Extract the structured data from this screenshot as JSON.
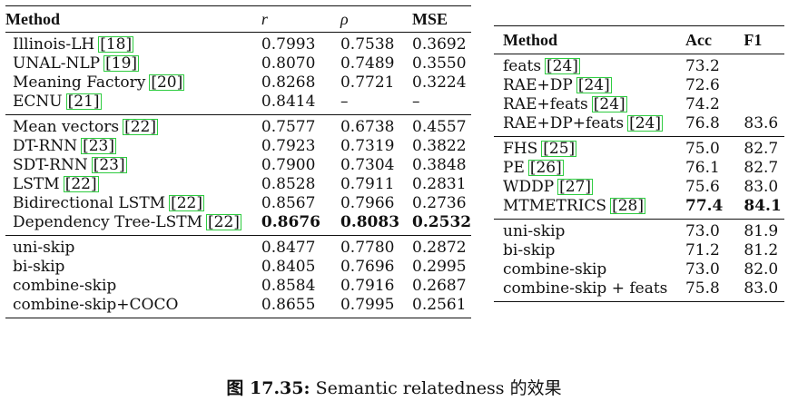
{
  "left_table": {
    "headers": [
      "Method",
      "r",
      "ρ",
      "MSE"
    ],
    "groups": [
      [
        {
          "method": "Illinois-LH",
          "cite": "[18]",
          "r": "0.7993",
          "rho": "0.7538",
          "mse": "0.3692"
        },
        {
          "method": "UNAL-NLP",
          "cite": "[19]",
          "r": "0.8070",
          "rho": "0.7489",
          "mse": "0.3550"
        },
        {
          "method": "Meaning Factory",
          "cite": "[20]",
          "r": "0.8268",
          "rho": "0.7721",
          "mse": "0.3224"
        },
        {
          "method": "ECNU",
          "cite": "[21]",
          "r": "0.8414",
          "rho": "–",
          "mse": "–"
        }
      ],
      [
        {
          "method": "Mean vectors",
          "cite": "[22]",
          "r": "0.7577",
          "rho": "0.6738",
          "mse": "0.4557"
        },
        {
          "method": "DT-RNN",
          "cite": "[23]",
          "r": "0.7923",
          "rho": "0.7319",
          "mse": "0.3822"
        },
        {
          "method": "SDT-RNN",
          "cite": "[23]",
          "r": "0.7900",
          "rho": "0.7304",
          "mse": "0.3848"
        },
        {
          "method": "LSTM",
          "cite": "[22]",
          "r": "0.8528",
          "rho": "0.7911",
          "mse": "0.2831"
        },
        {
          "method": "Bidirectional LSTM",
          "cite": "[22]",
          "r": "0.8567",
          "rho": "0.7966",
          "mse": "0.2736"
        },
        {
          "method": "Dependency Tree-LSTM",
          "cite": "[22]",
          "r": "0.8676",
          "rho": "0.8083",
          "mse": "0.2532",
          "bold": true
        }
      ],
      [
        {
          "method": "uni-skip",
          "cite": "",
          "r": "0.8477",
          "rho": "0.7780",
          "mse": "0.2872"
        },
        {
          "method": "bi-skip",
          "cite": "",
          "r": "0.8405",
          "rho": "0.7696",
          "mse": "0.2995"
        },
        {
          "method": "combine-skip",
          "cite": "",
          "r": "0.8584",
          "rho": "0.7916",
          "mse": "0.2687"
        },
        {
          "method": "combine-skip+COCO",
          "cite": "",
          "r": "0.8655",
          "rho": "0.7995",
          "mse": "0.2561"
        }
      ]
    ]
  },
  "right_table": {
    "headers": [
      "Method",
      "Acc",
      "F1"
    ],
    "groups": [
      [
        {
          "method": "feats",
          "cite": "[24]",
          "acc": "73.2",
          "f1": ""
        },
        {
          "method": "RAE+DP",
          "cite": "[24]",
          "acc": "72.6",
          "f1": ""
        },
        {
          "method": "RAE+feats",
          "cite": "[24]",
          "acc": "74.2",
          "f1": ""
        },
        {
          "method": "RAE+DP+feats",
          "cite": "[24]",
          "acc": "76.8",
          "f1": "83.6"
        }
      ],
      [
        {
          "method": "FHS",
          "cite": "[25]",
          "acc": "75.0",
          "f1": "82.7"
        },
        {
          "method": "PE",
          "cite": "[26]",
          "acc": "76.1",
          "f1": "82.7"
        },
        {
          "method": "WDDP",
          "cite": "[27]",
          "acc": "75.6",
          "f1": "83.0"
        },
        {
          "method": "MTMETRICS",
          "cite": "[28]",
          "acc": "77.4",
          "f1": "84.1",
          "bold": true
        }
      ],
      [
        {
          "method": "uni-skip",
          "cite": "",
          "acc": "73.0",
          "f1": "81.9"
        },
        {
          "method": "bi-skip",
          "cite": "",
          "acc": "71.2",
          "f1": "81.2"
        },
        {
          "method": "combine-skip",
          "cite": "",
          "acc": "73.0",
          "f1": "82.0"
        },
        {
          "method": "combine-skip + feats",
          "cite": "",
          "acc": "75.8",
          "f1": "83.0"
        }
      ]
    ]
  },
  "caption": {
    "label": "图 17.35:",
    "text": "Semantic relatedness 的效果"
  }
}
